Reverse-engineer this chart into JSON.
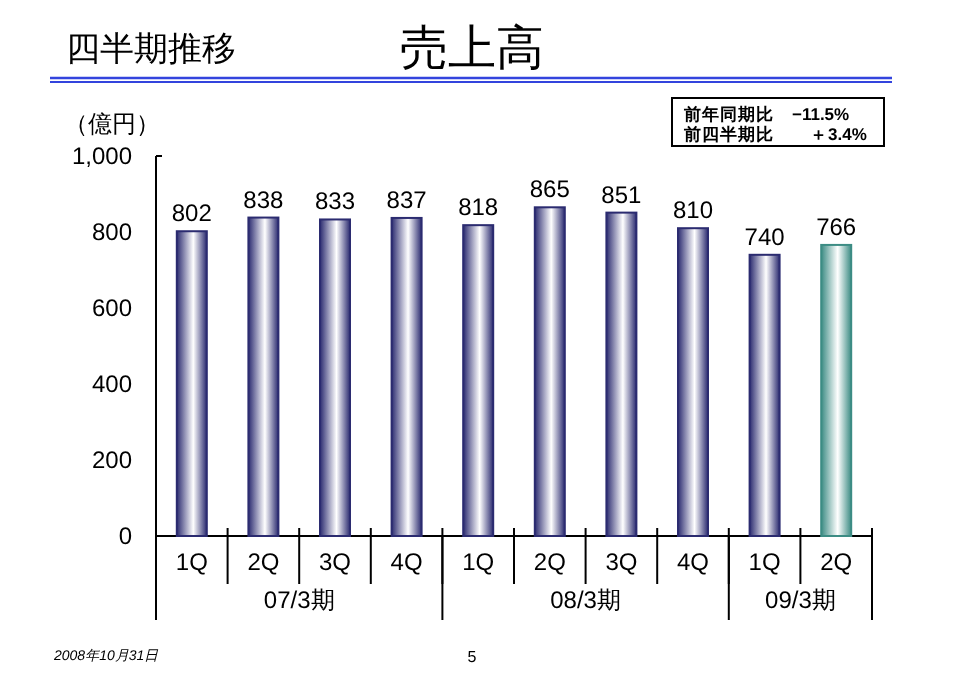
{
  "chart_data": {
    "type": "bar",
    "title": "売上高",
    "subtitle": "四半期推移",
    "ylabel": "（億円）",
    "categories": [
      "1Q",
      "2Q",
      "3Q",
      "4Q",
      "1Q",
      "2Q",
      "3Q",
      "4Q",
      "1Q",
      "2Q"
    ],
    "values": [
      802,
      838,
      833,
      837,
      818,
      865,
      851,
      810,
      740,
      766
    ],
    "colors": [
      "#2b2b70",
      "#2b2b70",
      "#2b2b70",
      "#2b2b70",
      "#2b2b70",
      "#2b2b70",
      "#2b2b70",
      "#2b2b70",
      "#2b2b70",
      "#3c8c84"
    ],
    "ylim": [
      0,
      1000
    ],
    "yticks": [
      0,
      200,
      400,
      600,
      800,
      {
        "value": 1000,
        "label": "1,000"
      }
    ],
    "data_labels": true,
    "grid": false,
    "annotations": [
      "07/3期",
      "08/3期",
      "09/3期",
      "前年同期比　−11.5%",
      "前四半期比　　＋3.4%",
      "2008年10月31日",
      "5"
    ]
  }
}
